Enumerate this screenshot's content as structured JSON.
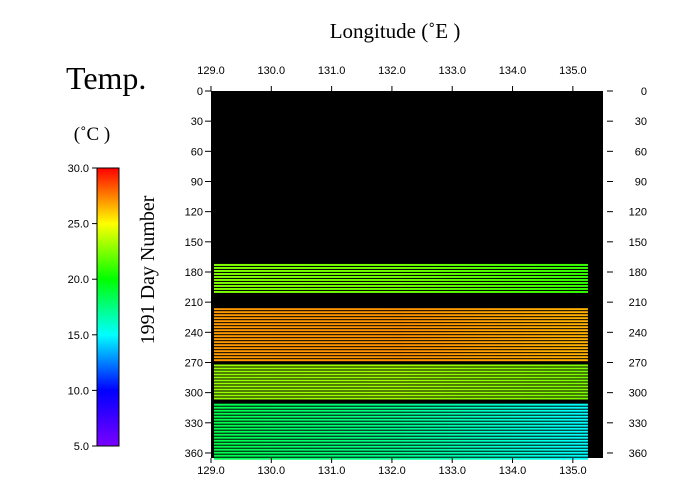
{
  "chart_data": {
    "type": "heatmap",
    "title": "Temp.",
    "xlabel": "Longitude (˚E )",
    "ylabel": "1991  Day Number",
    "colorbar_label": "(˚C )",
    "x_ticks": [
      129.0,
      130.0,
      131.0,
      132.0,
      133.0,
      134.0,
      135.0
    ],
    "x_tick_labels": [
      "129.0",
      "130.0",
      "131.0",
      "132.0",
      "133.0",
      "134.0",
      "135.0"
    ],
    "xlim": [
      129.0,
      135.5
    ],
    "y_ticks": [
      0,
      30,
      60,
      90,
      120,
      150,
      180,
      210,
      240,
      270,
      300,
      330,
      360
    ],
    "y_tick_labels": [
      "0",
      "30",
      "60",
      "90",
      "120",
      "150",
      "180",
      "210",
      "240",
      "270",
      "300",
      "330",
      "360"
    ],
    "ylim": [
      0,
      365
    ],
    "y_inverted": true,
    "colorbar_ticks": [
      5.0,
      10.0,
      15.0,
      20.0,
      25.0,
      30.0
    ],
    "colorbar_tick_labels": [
      "5.0",
      "10.0",
      "15.0",
      "20.0",
      "25.0",
      "30.0"
    ],
    "colorbar_range": [
      5.0,
      30.0
    ],
    "colormap": [
      "#7a00ff",
      "#0000ff",
      "#00ffff",
      "#00ff00",
      "#ffff00",
      "#ff0000"
    ],
    "no_data_color": "#000000",
    "data_x_range": [
      129.05,
      135.25
    ],
    "data_bands": [
      {
        "day_start": 172,
        "day_end": 200,
        "temp_west": 22.5,
        "temp_east": 21.0
      },
      {
        "day_start": 216,
        "day_end": 268,
        "temp_west": 27.0,
        "temp_east": 26.5
      },
      {
        "day_start": 272,
        "day_end": 307,
        "temp_west": 23.0,
        "temp_east": 22.5
      },
      {
        "day_start": 311,
        "day_end": 365,
        "temp_west": 18.5,
        "temp_east": 15.0
      }
    ]
  }
}
